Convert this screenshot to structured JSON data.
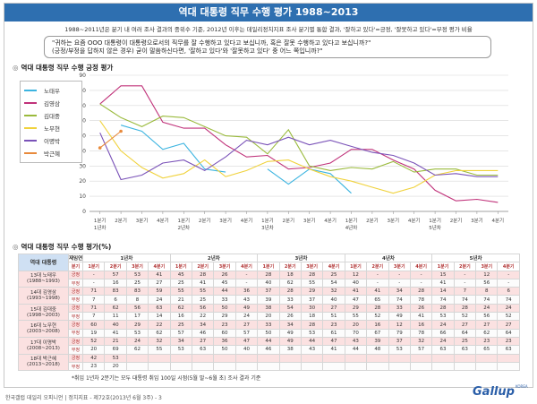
{
  "title": "역대 대통령 직무 수행 평가 1988~2013",
  "subtitle": "1988~2011년은 분기 내 여러 조사 결과의 중위수 기준, 2012년 이후는 데일리정치지표 조사 분기별 통합 결과, '잘하고 있다'=긍정, '잘못하고 있다'=부정 평가 비율",
  "question_line1": "\"귀하는 요즘 OOO 대통령이 대통령으로서의 직무를 잘 수행하고 있다고 보십니까, 혹은 잘못 수행하고 있다고 보십니까?\"",
  "question_line2": "(긍정/부정을 답하지 않은 경우) 굳이 말씀하신다면, '잘하고 있다'와 '잘못하고 있다' 중 어느 쪽입니까?\"",
  "section1_title": "역대 대통령 직무 수행 긍정 평가",
  "section2_title": "역대 대통령 직무 수행 평가(%)",
  "footnote": "*취임 1년차 2분기는 모두 대통령 취임 100일 시점(5월 말~6월 초) 조사 결과 기준",
  "source": "한국갤럽 데일리 오피니언 | 정치지표 - 제72호(2013년 6월 3주) - 3",
  "logo": "Gallup",
  "logo_small": "KOREA",
  "chart_data": {
    "type": "line",
    "ylim": [
      0,
      90
    ],
    "yticks": [
      0,
      10,
      20,
      30,
      40,
      50,
      60,
      70,
      80,
      90
    ],
    "grid": true,
    "legend_position": "top-left",
    "x_labels": [
      {
        "q": "1분기",
        "y": "1년차"
      },
      {
        "q": "2분기",
        "y": ""
      },
      {
        "q": "3분기",
        "y": ""
      },
      {
        "q": "4분기",
        "y": ""
      },
      {
        "q": "1분기",
        "y": "2년차"
      },
      {
        "q": "2분기",
        "y": ""
      },
      {
        "q": "3분기",
        "y": ""
      },
      {
        "q": "4분기",
        "y": ""
      },
      {
        "q": "1분기",
        "y": "3년차"
      },
      {
        "q": "2분기",
        "y": ""
      },
      {
        "q": "3분기",
        "y": ""
      },
      {
        "q": "4분기",
        "y": ""
      },
      {
        "q": "1분기",
        "y": "4년차"
      },
      {
        "q": "2분기",
        "y": ""
      },
      {
        "q": "3분기",
        "y": ""
      },
      {
        "q": "4분기",
        "y": ""
      },
      {
        "q": "1분기",
        "y": "5년차"
      },
      {
        "q": "2분기",
        "y": ""
      },
      {
        "q": "3분기",
        "y": ""
      },
      {
        "q": "4분기",
        "y": ""
      }
    ],
    "series": [
      {
        "name": "노태우",
        "color": "#3cb4e0",
        "marker": false,
        "values": [
          null,
          57,
          53,
          41,
          45,
          28,
          26,
          null,
          28,
          18,
          28,
          25,
          12,
          null,
          null,
          null,
          15,
          null,
          12,
          null
        ]
      },
      {
        "name": "김영삼",
        "color": "#c0327a",
        "marker": false,
        "values": [
          71,
          83,
          83,
          59,
          55,
          55,
          44,
          36,
          37,
          28,
          29,
          32,
          41,
          41,
          34,
          28,
          14,
          7,
          8,
          6
        ]
      },
      {
        "name": "김대중",
        "color": "#9aba3c",
        "marker": false,
        "values": [
          71,
          62,
          56,
          63,
          62,
          56,
          50,
          49,
          38,
          54,
          30,
          27,
          29,
          28,
          33,
          26,
          28,
          28,
          24,
          24
        ]
      },
      {
        "name": "노무현",
        "color": "#f0d23c",
        "marker": false,
        "values": [
          60,
          40,
          29,
          22,
          25,
          34,
          23,
          27,
          33,
          34,
          28,
          23,
          20,
          16,
          12,
          16,
          24,
          27,
          27,
          27
        ]
      },
      {
        "name": "이명박",
        "color": "#7a52b8",
        "marker": false,
        "values": [
          52,
          21,
          24,
          32,
          34,
          27,
          36,
          47,
          44,
          49,
          44,
          47,
          43,
          39,
          37,
          32,
          24,
          25,
          23,
          23
        ]
      },
      {
        "name": "박근혜",
        "color": "#e88a3c",
        "marker": true,
        "values": [
          42,
          53,
          null,
          null,
          null,
          null,
          null,
          null,
          null,
          null,
          null,
          null,
          null,
          null,
          null,
          null,
          null,
          null,
          null,
          null
        ]
      }
    ]
  },
  "table": {
    "corner_admin": "역대 대통령",
    "corner_year": "재임연차",
    "corner_quarter": "분기",
    "years": [
      "1년차",
      "2년차",
      "3년차",
      "4년차",
      "5년차"
    ],
    "quarters": [
      "1분기",
      "2분기",
      "3분기",
      "4분기"
    ],
    "pos_label": "긍정",
    "neg_label": "부정",
    "rows": [
      {
        "name": "13대 노태우",
        "term": "(1988~1993)",
        "pos": [
          "-",
          "57",
          "53",
          "41",
          "45",
          "28",
          "26",
          "-",
          "28",
          "18",
          "28",
          "25",
          "12",
          "-",
          "-",
          "-",
          "15",
          "-",
          "12",
          "-"
        ],
        "neg": [
          "-",
          "16",
          "25",
          "27",
          "25",
          "41",
          "45",
          "-",
          "40",
          "62",
          "55",
          "54",
          "40",
          "-",
          "-",
          "-",
          "41",
          "-",
          "56",
          "-"
        ]
      },
      {
        "name": "14대 김영삼",
        "term": "(1993~1998)",
        "pos": [
          "71",
          "83",
          "83",
          "59",
          "55",
          "55",
          "44",
          "36",
          "37",
          "28",
          "29",
          "32",
          "41",
          "41",
          "34",
          "28",
          "14",
          "7",
          "8",
          "6"
        ],
        "neg": [
          "7",
          "6",
          "8",
          "24",
          "21",
          "25",
          "33",
          "43",
          "39",
          "33",
          "37",
          "40",
          "47",
          "65",
          "74",
          "78",
          "74",
          "74",
          "74",
          "74"
        ]
      },
      {
        "name": "15대 김대중",
        "term": "(1998~2003)",
        "pos": [
          "71",
          "62",
          "56",
          "63",
          "62",
          "56",
          "50",
          "49",
          "38",
          "54",
          "30",
          "27",
          "29",
          "28",
          "33",
          "26",
          "28",
          "28",
          "24",
          "24"
        ],
        "neg": [
          "7",
          "11",
          "17",
          "14",
          "16",
          "22",
          "29",
          "24",
          "20",
          "26",
          "18",
          "51",
          "55",
          "52",
          "49",
          "41",
          "53",
          "52",
          "56",
          "52"
        ]
      },
      {
        "name": "16대 노무현",
        "term": "(2003~2008)",
        "pos": [
          "60",
          "40",
          "29",
          "22",
          "25",
          "34",
          "23",
          "27",
          "33",
          "34",
          "28",
          "23",
          "20",
          "16",
          "12",
          "16",
          "24",
          "27",
          "27",
          "27"
        ],
        "neg": [
          "19",
          "41",
          "53",
          "62",
          "57",
          "46",
          "60",
          "57",
          "50",
          "49",
          "53",
          "61",
          "70",
          "67",
          "79",
          "78",
          "66",
          "64",
          "62",
          "64"
        ]
      },
      {
        "name": "17대 이명박",
        "term": "(2008~2013)",
        "pos": [
          "52",
          "21",
          "24",
          "32",
          "34",
          "27",
          "36",
          "47",
          "44",
          "49",
          "44",
          "47",
          "43",
          "39",
          "37",
          "32",
          "24",
          "25",
          "23",
          "23"
        ],
        "neg": [
          "20",
          "69",
          "62",
          "55",
          "53",
          "63",
          "50",
          "40",
          "46",
          "38",
          "43",
          "41",
          "44",
          "48",
          "53",
          "57",
          "63",
          "63",
          "65",
          "63"
        ]
      },
      {
        "name": "18대 박근혜",
        "term": "(2013~2018)",
        "pos": [
          "42",
          "53",
          "",
          "",
          "",
          "",
          "",
          "",
          "",
          "",
          "",
          "",
          "",
          "",
          "",
          "",
          "",
          "",
          "",
          ""
        ],
        "neg": [
          "23",
          "20",
          "",
          "",
          "",
          "",
          "",
          "",
          "",
          "",
          "",
          "",
          "",
          "",
          "",
          "",
          "",
          "",
          "",
          ""
        ]
      }
    ]
  }
}
